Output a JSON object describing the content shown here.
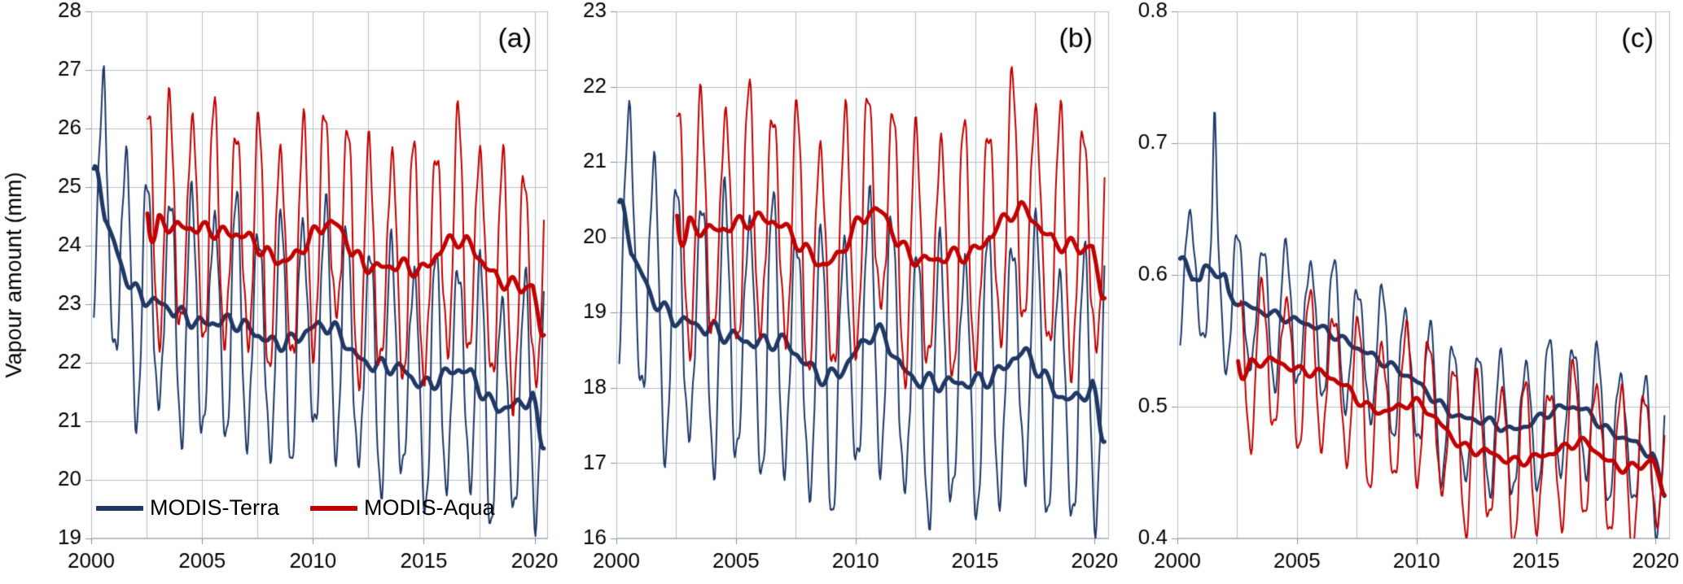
{
  "figure": {
    "ylabel": "Vapour amount (mm)",
    "grid_color": "#b7bcc9",
    "text_color": "#000000"
  },
  "legend": {
    "position": "bottom-left-inside-panel-a",
    "items": [
      {
        "label": "MODIS-Terra",
        "color": "#1F3864"
      },
      {
        "label": "MODIS-Aqua",
        "color": "#C00000"
      }
    ]
  },
  "chart_data": [
    {
      "type": "line",
      "panel_label": "(a)",
      "title": "",
      "xlabel": "",
      "ylabel": "Vapour amount (mm)",
      "ylim": [
        19,
        28
      ],
      "ytick_step": 1,
      "y_decimals": 0,
      "xlim": [
        2000,
        2020.6
      ],
      "xticks": [
        2000,
        2005,
        2010,
        2015,
        2020
      ],
      "x_grid_step": 2.5,
      "grid": true,
      "legend_here": true,
      "years": [
        2000,
        2001,
        2002,
        2003,
        2004,
        2005,
        2006,
        2007,
        2008,
        2009,
        2010,
        2011,
        2012,
        2013,
        2014,
        2015,
        2016,
        2017,
        2018,
        2019,
        2020
      ],
      "series": [
        {
          "name": "MODIS-Terra",
          "color": "#1F3864",
          "start": 2000.12,
          "end": 2020.45,
          "amp_pos": 2.0,
          "amp_neg": 1.9,
          "spikes": [
            {
              "t": 2000.6,
              "dv": 0.9
            }
          ],
          "annual_trend": [
            24.9,
            23.9,
            23.1,
            23.0,
            22.8,
            22.6,
            22.7,
            22.6,
            22.3,
            22.3,
            22.6,
            22.6,
            22.0,
            21.9,
            21.9,
            21.5,
            21.8,
            21.9,
            21.2,
            21.2,
            21.4
          ]
        },
        {
          "name": "MODIS-Aqua",
          "color": "#C00000",
          "start": 2002.54,
          "end": 2020.45,
          "amp_pos": 2.2,
          "amp_neg": 1.6,
          "spikes": [],
          "annual_trend": [
            24.2,
            24.2,
            24.2,
            24.2,
            24.1,
            24.1,
            24.0,
            24.0,
            23.6,
            23.5,
            24.0,
            24.3,
            23.5,
            23.4,
            23.5,
            23.3,
            23.9,
            23.9,
            23.3,
            23.1,
            23.1
          ]
        }
      ]
    },
    {
      "type": "line",
      "panel_label": "(b)",
      "title": "",
      "xlabel": "",
      "ylabel": "",
      "ylim": [
        16,
        23
      ],
      "ytick_step": 1,
      "y_decimals": 0,
      "xlim": [
        2000,
        2020.6
      ],
      "xticks": [
        2000,
        2005,
        2010,
        2015,
        2020
      ],
      "x_grid_step": 2.5,
      "grid": true,
      "legend_here": false,
      "years": [
        2000,
        2001,
        2002,
        2003,
        2004,
        2005,
        2006,
        2007,
        2008,
        2009,
        2010,
        2011,
        2012,
        2013,
        2014,
        2015,
        2016,
        2017,
        2018,
        2019,
        2020
      ],
      "series": [
        {
          "name": "MODIS-Terra",
          "color": "#1F3864",
          "start": 2000.12,
          "end": 2020.45,
          "amp_pos": 1.8,
          "amp_neg": 1.6,
          "spikes": [
            {
              "t": 2000.6,
              "dv": 0.35
            }
          ],
          "annual_trend": [
            20.1,
            19.4,
            18.9,
            18.8,
            18.7,
            18.6,
            18.5,
            18.6,
            18.2,
            18.0,
            18.4,
            18.8,
            18.1,
            18.0,
            18.0,
            18.0,
            18.1,
            18.5,
            18.0,
            17.7,
            18.0
          ]
        },
        {
          "name": "MODIS-Aqua",
          "color": "#C00000",
          "start": 2002.54,
          "end": 2020.45,
          "amp_pos": 1.8,
          "amp_neg": 1.3,
          "spikes": [],
          "annual_trend": [
            20.0,
            20.0,
            20.0,
            20.0,
            19.9,
            20.0,
            20.1,
            20.0,
            19.6,
            19.4,
            20.0,
            20.3,
            19.6,
            19.5,
            19.6,
            19.6,
            20.0,
            20.3,
            19.8,
            19.7,
            19.7
          ]
        }
      ]
    },
    {
      "type": "line",
      "panel_label": "(c)",
      "title": "",
      "xlabel": "",
      "ylabel": "",
      "ylim": [
        0.4,
        0.8
      ],
      "ytick_step": 0.1,
      "y_decimals": 1,
      "xlim": [
        2000,
        2020.6
      ],
      "xticks": [
        2000,
        2005,
        2010,
        2015,
        2020
      ],
      "x_grid_step": 2.5,
      "grid": true,
      "legend_here": false,
      "years": [
        2000,
        2001,
        2002,
        2003,
        2004,
        2005,
        2006,
        2007,
        2008,
        2009,
        2010,
        2011,
        2012,
        2013,
        2014,
        2015,
        2016,
        2017,
        2018,
        2019,
        2020
      ],
      "series": [
        {
          "name": "MODIS-Terra",
          "color": "#1F3864",
          "start": 2000.12,
          "end": 2020.4,
          "amp_pos": 0.05,
          "amp_neg": 0.05,
          "spikes": [
            {
              "t": 2001.55,
              "dv": 0.085
            }
          ],
          "annual_trend": [
            0.6,
            0.595,
            0.585,
            0.575,
            0.57,
            0.565,
            0.56,
            0.55,
            0.54,
            0.53,
            0.52,
            0.5,
            0.49,
            0.49,
            0.48,
            0.49,
            0.5,
            0.5,
            0.48,
            0.475,
            0.46
          ]
        },
        {
          "name": "MODIS-Aqua",
          "color": "#C00000",
          "start": 2002.54,
          "end": 2020.4,
          "amp_pos": 0.05,
          "amp_neg": 0.06,
          "spikes": [],
          "annual_trend": [
            0.53,
            0.53,
            0.53,
            0.535,
            0.54,
            0.53,
            0.53,
            0.52,
            0.5,
            0.5,
            0.51,
            0.49,
            0.47,
            0.47,
            0.46,
            0.465,
            0.47,
            0.48,
            0.46,
            0.455,
            0.465
          ]
        }
      ]
    }
  ]
}
